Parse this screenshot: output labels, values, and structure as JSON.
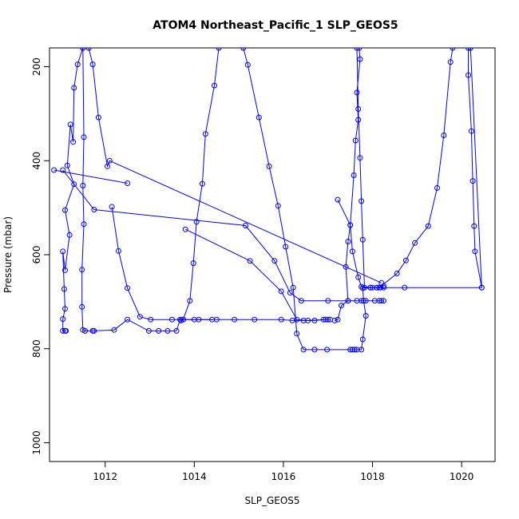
{
  "chart_data": {
    "type": "line",
    "title": "ATOM4 Northeast_Pacific_1 SLP_GEOS5",
    "xlabel": "SLP_GEOS5",
    "ylabel": "Pressure (mbar)",
    "xlim": [
      1010.75,
      1020.75
    ],
    "ylim": [
      1040,
      160
    ],
    "y_inverted": true,
    "x_ticks": [
      1012,
      1014,
      1016,
      1018,
      1020
    ],
    "y_ticks": [
      200,
      400,
      600,
      800,
      1000
    ],
    "grid": false,
    "legend": "none",
    "color": "#0000ff",
    "series": [
      {
        "points": [
          [
            1011.5,
            160
          ],
          [
            1011.38,
            195
          ],
          [
            1011.3,
            245
          ],
          [
            1011.28,
            360
          ],
          [
            1011.22,
            323
          ],
          [
            1011.15,
            410
          ],
          [
            1011.3,
            450
          ],
          [
            1011.1,
            505
          ],
          [
            1011.2,
            558
          ],
          [
            1011.1,
            633
          ],
          [
            1011.05,
            593
          ],
          [
            1011.08,
            673
          ],
          [
            1011.1,
            715
          ],
          [
            1011.05,
            737
          ],
          [
            1011.05,
            762
          ],
          [
            1011.1,
            762
          ],
          [
            1011.12,
            762
          ]
        ]
      },
      {
        "points": [
          [
            1011.5,
            160
          ],
          [
            1011.52,
            350
          ],
          [
            1011.5,
            453
          ],
          [
            1011.52,
            535
          ],
          [
            1011.48,
            632
          ],
          [
            1011.48,
            711
          ],
          [
            1011.5,
            760
          ],
          [
            1011.55,
            762
          ],
          [
            1011.72,
            762
          ],
          [
            1011.75,
            762
          ],
          [
            1012.2,
            760
          ],
          [
            1012.5,
            738
          ],
          [
            1012.98,
            762
          ],
          [
            1013.2,
            762
          ],
          [
            1013.4,
            762
          ],
          [
            1013.6,
            762
          ],
          [
            1013.68,
            738
          ],
          [
            1014.1,
            738
          ],
          [
            1014.5,
            738
          ],
          [
            1014.9,
            738
          ],
          [
            1015.35,
            738
          ],
          [
            1015.95,
            738
          ],
          [
            1016.2,
            740
          ],
          [
            1016.45,
            740
          ],
          [
            1016.7,
            740
          ],
          [
            1016.9,
            738
          ],
          [
            1017.0,
            738
          ]
        ]
      },
      {
        "points": [
          [
            1011.63,
            160
          ],
          [
            1011.72,
            195
          ],
          [
            1011.85,
            308
          ],
          [
            1012.05,
            412
          ],
          [
            1012.1,
            400
          ],
          [
            1018.2,
            660
          ]
        ]
      },
      {
        "points": [
          [
            1010.85,
            420
          ],
          [
            1012.5,
            448
          ]
        ]
      },
      {
        "points": [
          [
            1011.05,
            420
          ],
          [
            1011.75,
            504
          ],
          [
            1015.15,
            538
          ],
          [
            1015.8,
            613
          ],
          [
            1016.15,
            681
          ],
          [
            1016.4,
            698
          ],
          [
            1017.0,
            698
          ],
          [
            1017.45,
            698
          ],
          [
            1017.65,
            698
          ],
          [
            1017.75,
            698
          ],
          [
            1017.85,
            698
          ],
          [
            1018.05,
            698
          ],
          [
            1018.15,
            698
          ],
          [
            1018.2,
            698
          ],
          [
            1018.25,
            698
          ]
        ]
      },
      {
        "points": [
          [
            1012.15,
            498
          ],
          [
            1012.3,
            592
          ],
          [
            1012.5,
            671
          ],
          [
            1012.78,
            732
          ],
          [
            1013.02,
            738
          ],
          [
            1013.5,
            738
          ],
          [
            1013.75,
            738
          ],
          [
            1014.0,
            738
          ],
          [
            1014.4,
            738
          ]
        ]
      },
      {
        "points": [
          [
            1013.8,
            546
          ],
          [
            1015.25,
            613
          ],
          [
            1015.95,
            678
          ],
          [
            1016.3,
            738
          ],
          [
            1016.55,
            740
          ],
          [
            1016.95,
            738
          ],
          [
            1017.05,
            738
          ]
        ]
      },
      {
        "points": [
          [
            1014.55,
            160
          ],
          [
            1014.45,
            240
          ],
          [
            1014.25,
            343
          ],
          [
            1014.18,
            449
          ],
          [
            1014.05,
            530
          ],
          [
            1013.98,
            618
          ],
          [
            1013.9,
            698
          ],
          [
            1013.75,
            738
          ],
          [
            1013.7,
            740
          ]
        ]
      },
      {
        "points": [
          [
            1015.1,
            160
          ],
          [
            1015.2,
            196
          ],
          [
            1015.45,
            308
          ],
          [
            1015.68,
            412
          ],
          [
            1015.88,
            496
          ],
          [
            1016.05,
            583
          ],
          [
            1016.22,
            670
          ],
          [
            1016.3,
            768
          ],
          [
            1016.45,
            802
          ],
          [
            1016.7,
            802
          ],
          [
            1016.98,
            802
          ],
          [
            1017.5,
            802
          ],
          [
            1017.55,
            802
          ],
          [
            1017.6,
            802
          ],
          [
            1017.65,
            802
          ],
          [
            1017.75,
            802
          ],
          [
            1017.78,
            780
          ],
          [
            1017.85,
            730
          ],
          [
            1017.8,
            698
          ],
          [
            1017.78,
            671
          ],
          [
            1018.0,
            670
          ],
          [
            1018.25,
            670
          ],
          [
            1018.72,
            670
          ],
          [
            1020.45,
            670
          ],
          [
            1020.2,
            160
          ]
        ]
      },
      {
        "points": [
          [
            1017.7,
            160
          ],
          [
            1017.72,
            184
          ],
          [
            1017.65,
            255
          ],
          [
            1017.68,
            313
          ],
          [
            1017.62,
            357
          ],
          [
            1017.58,
            431
          ],
          [
            1017.5,
            537
          ],
          [
            1017.45,
            572
          ],
          [
            1017.4,
            626
          ],
          [
            1017.45,
            698
          ],
          [
            1017.3,
            708
          ],
          [
            1017.22,
            738
          ],
          [
            1017.15,
            740
          ]
        ]
      },
      {
        "points": [
          [
            1017.22,
            483
          ],
          [
            1017.5,
            537
          ],
          [
            1017.55,
            593
          ],
          [
            1017.68,
            648
          ],
          [
            1017.75,
            668
          ],
          [
            1017.95,
            670
          ],
          [
            1018.1,
            670
          ],
          [
            1018.18,
            670
          ],
          [
            1018.25,
            667
          ]
        ]
      },
      {
        "points": [
          [
            1017.65,
            160
          ],
          [
            1017.68,
            290
          ],
          [
            1017.72,
            394
          ],
          [
            1017.75,
            486
          ],
          [
            1017.78,
            568
          ],
          [
            1017.82,
            670
          ],
          [
            1017.95,
            670
          ],
          [
            1018.1,
            670
          ]
        ]
      },
      {
        "points": [
          [
            1018.15,
            670
          ],
          [
            1018.55,
            640
          ],
          [
            1018.75,
            612
          ],
          [
            1018.95,
            575
          ],
          [
            1019.25,
            539
          ],
          [
            1019.45,
            458
          ],
          [
            1019.6,
            346
          ],
          [
            1019.75,
            190
          ],
          [
            1019.8,
            160
          ]
        ]
      },
      {
        "points": [
          [
            1020.15,
            160
          ],
          [
            1020.15,
            218
          ],
          [
            1020.22,
            337
          ],
          [
            1020.25,
            443
          ],
          [
            1020.28,
            539
          ],
          [
            1020.3,
            593
          ],
          [
            1020.45,
            670
          ]
        ]
      }
    ]
  }
}
